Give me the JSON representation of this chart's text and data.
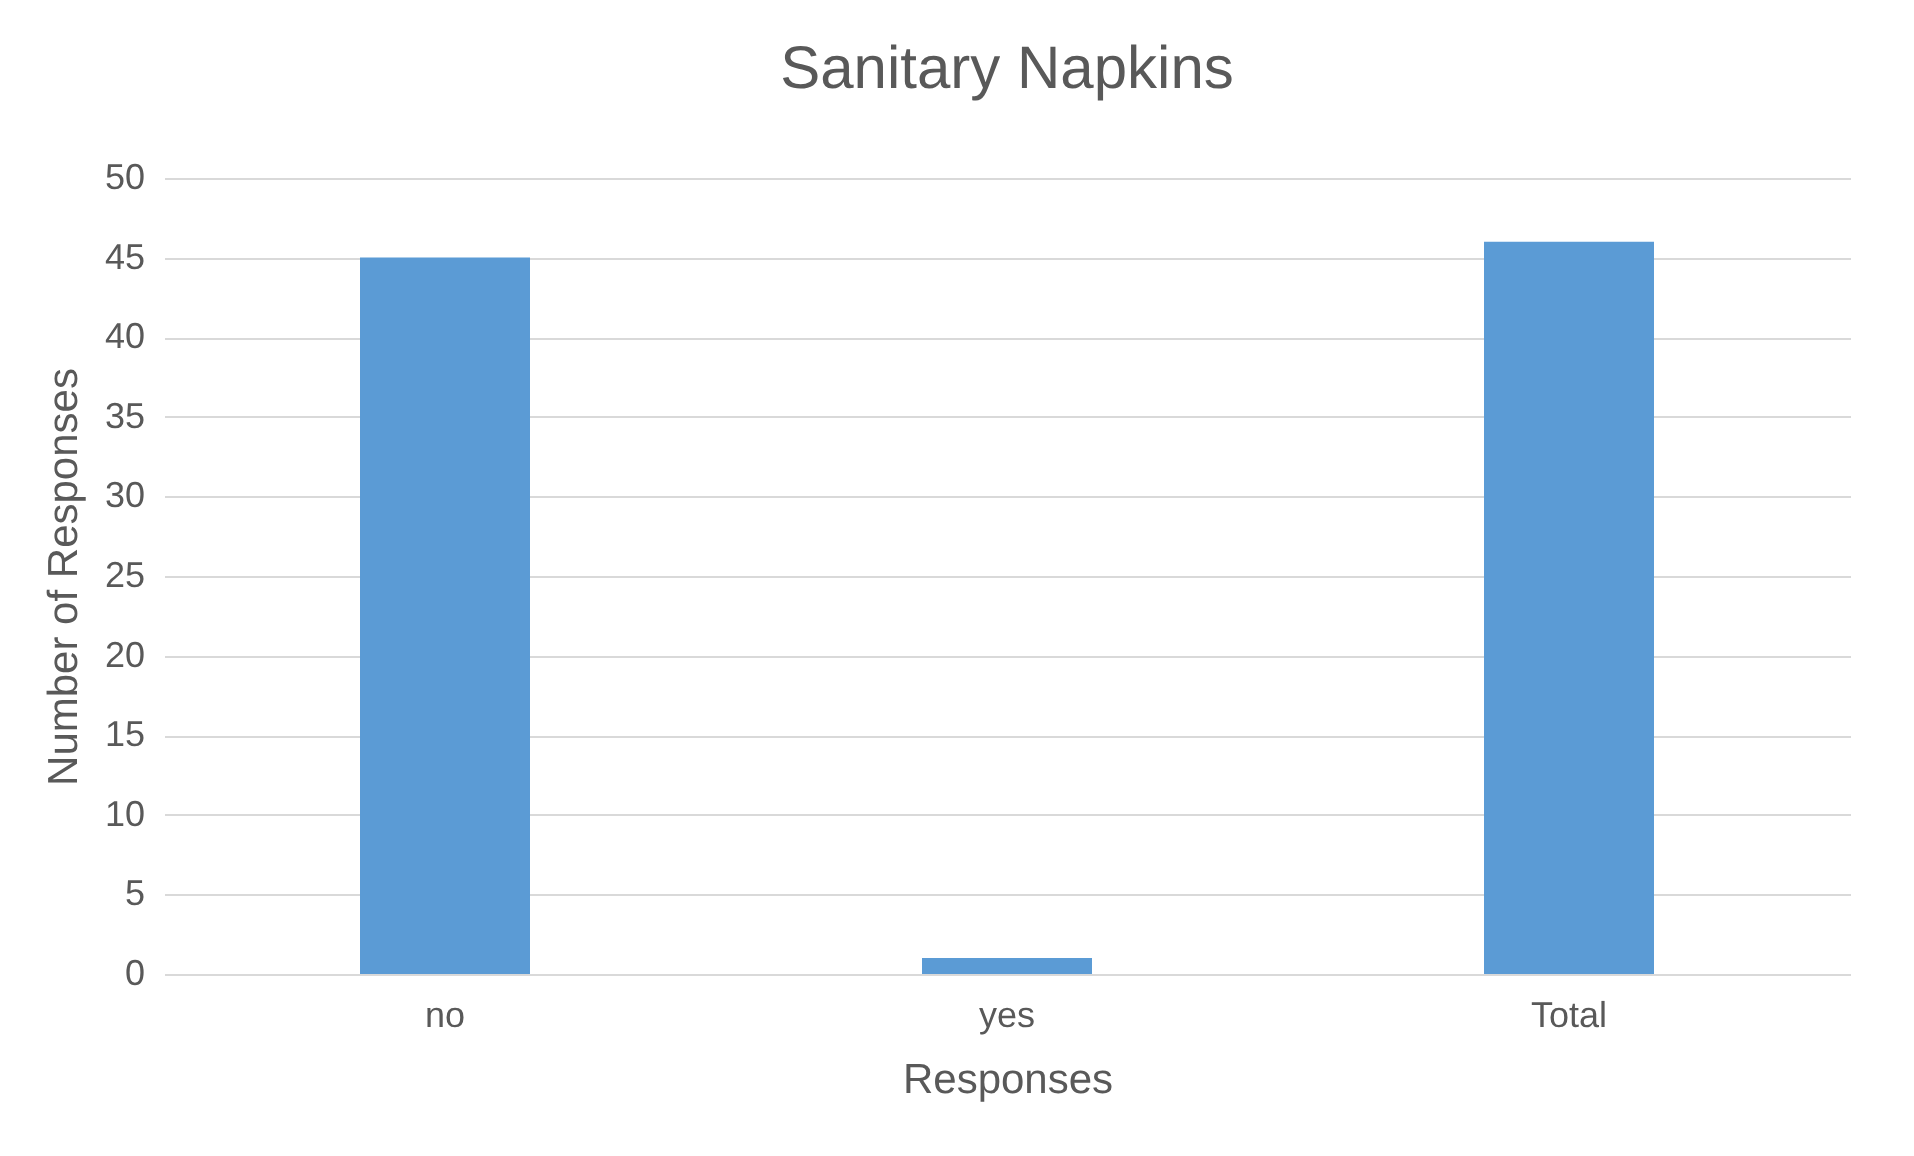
{
  "chart_data": {
    "type": "bar",
    "title": "Sanitary Napkins",
    "xlabel": "Responses",
    "ylabel": "Number of Responses",
    "categories": [
      "no",
      "yes",
      "Total"
    ],
    "values": [
      45,
      1,
      46
    ],
    "color": "#5b9bd5",
    "ylim": [
      0,
      50
    ],
    "yticks": [
      0,
      5,
      10,
      15,
      20,
      25,
      30,
      35,
      40,
      45,
      50
    ],
    "grid": "y"
  }
}
